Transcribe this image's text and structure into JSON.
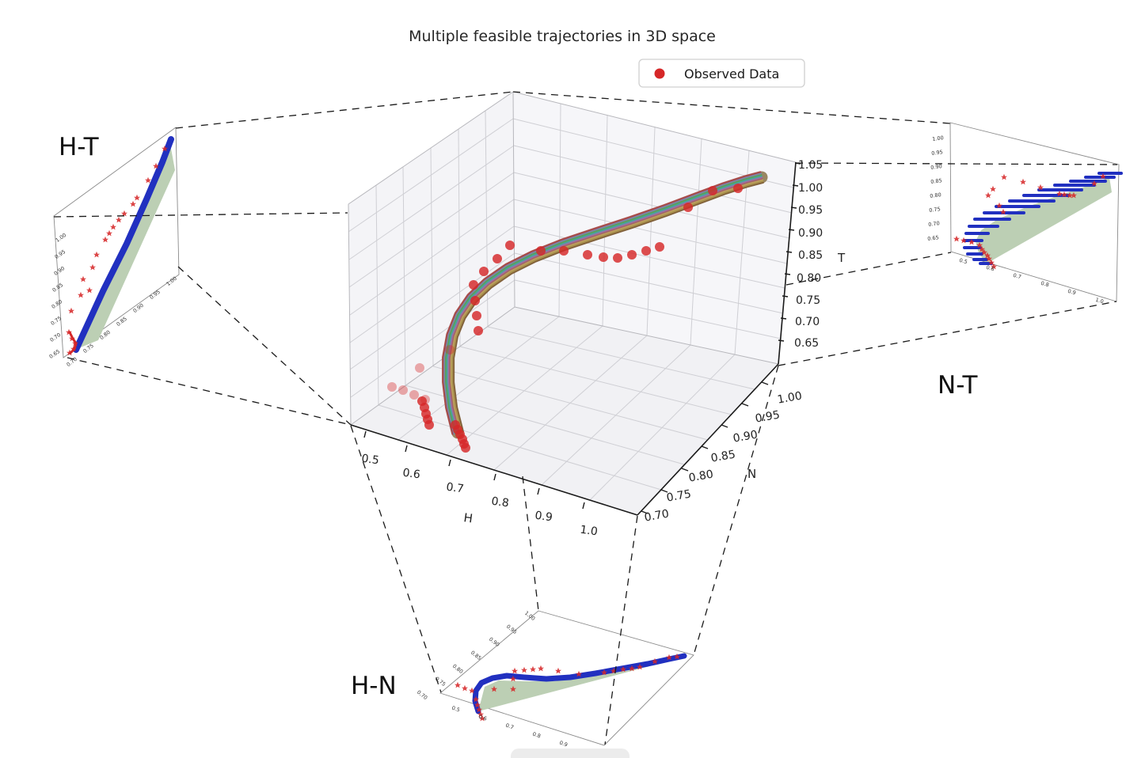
{
  "title": "Multiple feasible trajectories in 3D space",
  "legend": {
    "label": "Observed Data"
  },
  "colors": {
    "observed": "#d62728",
    "feasible_region_green": "#bccfb4",
    "projection_blue": "#2130c0",
    "dashed_connector": "#1a1a1a",
    "band_base": "#8f7b52"
  },
  "main_plot": {
    "axes": {
      "h": {
        "label": "H",
        "ticks": [
          "0.5",
          "0.6",
          "0.7",
          "0.8",
          "0.9",
          "1.0"
        ]
      },
      "n": {
        "label": "N",
        "ticks": [
          "1.00",
          "0.95",
          "0.90",
          "0.85",
          "0.80",
          "0.75",
          "0.70"
        ]
      },
      "t": {
        "label": "T",
        "ticks": [
          "1.05",
          "1.00",
          "0.95",
          "0.90",
          "0.85",
          "0.80",
          "0.75",
          "0.70",
          "0.65"
        ]
      }
    }
  },
  "insets": {
    "ht": {
      "label": "H-T",
      "y_ticks": [
        "1.00",
        "0.95",
        "0.90",
        "0.85",
        "0.80",
        "0.75",
        "0.70",
        "0.65"
      ],
      "x_ticks": [
        "0.70",
        "0.75",
        "0.80",
        "0.85",
        "0.90",
        "0.95",
        "1.00"
      ]
    },
    "nt": {
      "label": "N-T",
      "y_ticks": [
        "1.00",
        "0.95",
        "0.90",
        "0.85",
        "0.80",
        "0.75",
        "0.70",
        "0.65"
      ],
      "x_ticks": [
        "0.5",
        "0.6",
        "0.7",
        "0.8",
        "0.9",
        "1.0"
      ]
    },
    "hn": {
      "label": "H-N",
      "y_ticks": [
        "1.00",
        "0.95",
        "0.90",
        "0.85",
        "0.80",
        "0.75",
        "0.70"
      ],
      "x_ticks": [
        "0.5",
        "0.6",
        "0.7",
        "0.8",
        "0.9",
        "1.0"
      ]
    }
  },
  "chart_data": {
    "type": "line",
    "subtype": "3d-trajectory-ensemble-with-2d-projections",
    "title": "Multiple feasible trajectories in 3D space",
    "legend": [
      "Observed Data"
    ],
    "axes": {
      "x": {
        "label": "H",
        "range": [
          0.5,
          1.0
        ]
      },
      "y": {
        "label": "N",
        "range": [
          0.7,
          1.0
        ]
      },
      "z": {
        "label": "T",
        "range": [
          0.65,
          1.05
        ]
      }
    },
    "n_trajectories": 20,
    "mean_trajectory_HNT": [
      [
        0.57,
        0.72,
        0.66
      ],
      [
        0.57,
        0.73,
        0.7
      ],
      [
        0.58,
        0.74,
        0.74
      ],
      [
        0.6,
        0.75,
        0.78
      ],
      [
        0.63,
        0.77,
        0.81
      ],
      [
        0.67,
        0.8,
        0.84
      ],
      [
        0.72,
        0.83,
        0.87
      ],
      [
        0.78,
        0.86,
        0.9
      ],
      [
        0.84,
        0.9,
        0.93
      ],
      [
        0.9,
        0.94,
        0.97
      ],
      [
        0.96,
        0.98,
        1.0
      ],
      [
        1.0,
        1.0,
        1.03
      ]
    ],
    "observed_HNT": [
      [
        0.57,
        0.71,
        0.65
      ],
      [
        0.58,
        0.72,
        0.66
      ],
      [
        0.58,
        0.72,
        0.68
      ],
      [
        0.59,
        0.73,
        0.7
      ],
      [
        0.57,
        0.72,
        0.72
      ],
      [
        0.58,
        0.73,
        0.74
      ],
      [
        0.6,
        0.74,
        0.77
      ],
      [
        0.62,
        0.76,
        0.8
      ],
      [
        0.65,
        0.78,
        0.83
      ],
      [
        0.68,
        0.8,
        0.85
      ],
      [
        0.72,
        0.82,
        0.87
      ],
      [
        0.75,
        0.84,
        0.88
      ],
      [
        0.78,
        0.86,
        0.89
      ],
      [
        0.81,
        0.87,
        0.9
      ],
      [
        0.83,
        0.89,
        0.91
      ],
      [
        0.86,
        0.91,
        0.93
      ],
      [
        0.89,
        0.93,
        0.95
      ],
      [
        0.93,
        0.96,
        0.99
      ],
      [
        0.97,
        0.99,
        1.01
      ],
      [
        1.0,
        1.0,
        1.02
      ]
    ],
    "projections": [
      {
        "plane": "H-T",
        "position": "upper-left"
      },
      {
        "plane": "N-T",
        "position": "right"
      },
      {
        "plane": "H-N",
        "position": "bottom"
      }
    ]
  }
}
